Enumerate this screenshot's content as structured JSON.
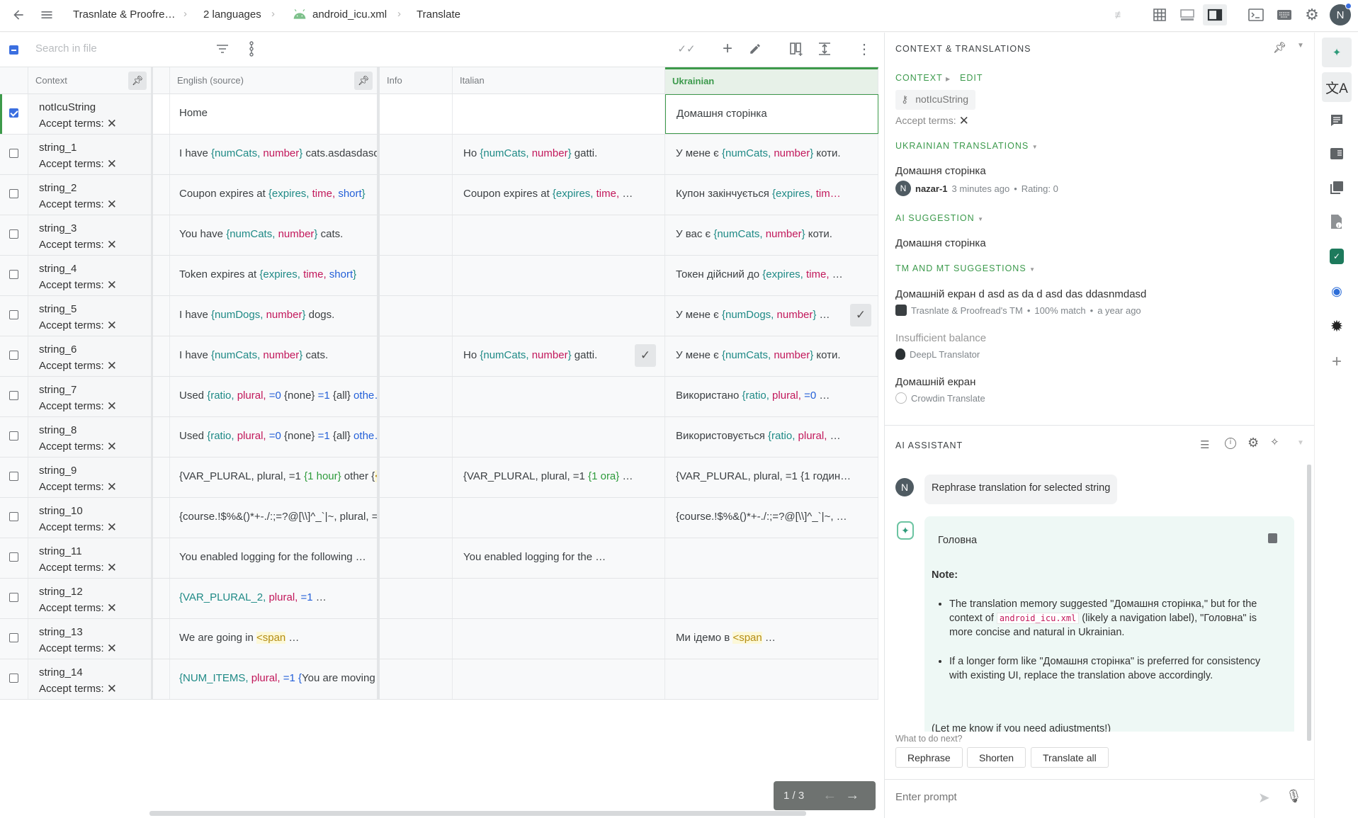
{
  "breadcrumb": {
    "project": "Trasnlate & Proofre…",
    "languages": "2 languages",
    "file": "android_icu.xml",
    "page": "Translate"
  },
  "user_initial": "N",
  "toolbar": {
    "search_placeholder": "Search in file"
  },
  "table": {
    "headers": {
      "context": "Context",
      "english": "English (source)",
      "info": "Info",
      "italian": "Italian",
      "ukrainian": "Ukrainian"
    },
    "accept_terms_label": "Accept terms:",
    "rows": [
      {
        "key": "notIcuString",
        "selected": true,
        "english": [
          {
            "t": "Home"
          }
        ],
        "italian": [],
        "ukrainian": [
          {
            "t": "Домашня сторінка"
          }
        ]
      },
      {
        "key": "string_1",
        "english": [
          {
            "t": "I have "
          },
          {
            "t": "{numCats, ",
            "c": "v"
          },
          {
            "t": "number",
            "c": "f"
          },
          {
            "t": "}",
            "c": "v"
          },
          {
            "t": " cats.asdasdasd"
          }
        ],
        "italian": [
          {
            "t": "Ho "
          },
          {
            "t": "{numCats, ",
            "c": "v"
          },
          {
            "t": "number",
            "c": "f"
          },
          {
            "t": "}",
            "c": "v"
          },
          {
            "t": " gatti."
          }
        ],
        "ukrainian": [
          {
            "t": "У мене є "
          },
          {
            "t": "{numCats, ",
            "c": "v"
          },
          {
            "t": "number",
            "c": "f"
          },
          {
            "t": "}",
            "c": "v"
          },
          {
            "t": " коти."
          }
        ]
      },
      {
        "key": "string_2",
        "english": [
          {
            "t": "Coupon expires at "
          },
          {
            "t": "{expires, ",
            "c": "v"
          },
          {
            "t": "time, ",
            "c": "f"
          },
          {
            "t": "short",
            "c": "o"
          },
          {
            "t": "}",
            "c": "v"
          }
        ],
        "italian": [
          {
            "t": "Coupon expires at "
          },
          {
            "t": "{expires, ",
            "c": "v"
          },
          {
            "t": "time, ",
            "c": "f"
          },
          {
            "t": "…"
          }
        ],
        "ukrainian": [
          {
            "t": "Купон закінчується "
          },
          {
            "t": "{expires, ",
            "c": "v"
          },
          {
            "t": "tim…",
            "c": "f"
          }
        ]
      },
      {
        "key": "string_3",
        "english": [
          {
            "t": "You have "
          },
          {
            "t": "{numCats, ",
            "c": "v"
          },
          {
            "t": "number",
            "c": "f"
          },
          {
            "t": "}",
            "c": "v"
          },
          {
            "t": " cats."
          }
        ],
        "italian": [],
        "ukrainian": [
          {
            "t": "У вас є "
          },
          {
            "t": "{numCats, ",
            "c": "v"
          },
          {
            "t": "number",
            "c": "f"
          },
          {
            "t": "}",
            "c": "v"
          },
          {
            "t": " коти."
          }
        ]
      },
      {
        "key": "string_4",
        "english": [
          {
            "t": "Token expires at "
          },
          {
            "t": "{expires, ",
            "c": "v"
          },
          {
            "t": "time, ",
            "c": "f"
          },
          {
            "t": "short",
            "c": "o"
          },
          {
            "t": "}",
            "c": "v"
          }
        ],
        "italian": [],
        "ukrainian": [
          {
            "t": "Токен дійсний до "
          },
          {
            "t": "{expires, ",
            "c": "v"
          },
          {
            "t": "time, ",
            "c": "f"
          },
          {
            "t": "…"
          }
        ]
      },
      {
        "key": "string_5",
        "english": [
          {
            "t": "I have "
          },
          {
            "t": "{numDogs, ",
            "c": "v"
          },
          {
            "t": "number",
            "c": "f"
          },
          {
            "t": "}",
            "c": "v"
          },
          {
            "t": " dogs."
          }
        ],
        "italian": [],
        "ukrainian": [
          {
            "t": "У мене є "
          },
          {
            "t": "{numDogs, ",
            "c": "v"
          },
          {
            "t": "number",
            "c": "f"
          },
          {
            "t": "}",
            "c": "v"
          },
          {
            "t": " …"
          }
        ],
        "uk_check": true
      },
      {
        "key": "string_6",
        "english": [
          {
            "t": "I have "
          },
          {
            "t": "{numCats, ",
            "c": "v"
          },
          {
            "t": "number",
            "c": "f"
          },
          {
            "t": "}",
            "c": "v"
          },
          {
            "t": " cats."
          }
        ],
        "italian": [
          {
            "t": "Ho "
          },
          {
            "t": "{numCats, ",
            "c": "v"
          },
          {
            "t": "number",
            "c": "f"
          },
          {
            "t": "}",
            "c": "v"
          },
          {
            "t": " gatti."
          }
        ],
        "it_check": true,
        "ukrainian": [
          {
            "t": "У мене є "
          },
          {
            "t": "{numCats, ",
            "c": "v"
          },
          {
            "t": "number",
            "c": "f"
          },
          {
            "t": "}",
            "c": "v"
          },
          {
            "t": " коти."
          }
        ]
      },
      {
        "key": "string_7",
        "english": [
          {
            "t": "Used "
          },
          {
            "t": "{ratio, ",
            "c": "v"
          },
          {
            "t": "plural, ",
            "c": "f"
          },
          {
            "t": "=0 ",
            "c": "o"
          },
          {
            "t": "{none}"
          },
          {
            "t": " =1 ",
            "c": "o"
          },
          {
            "t": "{all}"
          },
          {
            "t": " othe…",
            "c": "o"
          }
        ],
        "italian": [],
        "ukrainian": [
          {
            "t": "Використано "
          },
          {
            "t": "{ratio, ",
            "c": "v"
          },
          {
            "t": "plural, ",
            "c": "f"
          },
          {
            "t": "=0",
            "c": "o"
          },
          {
            "t": " …"
          }
        ]
      },
      {
        "key": "string_8",
        "english": [
          {
            "t": "Used "
          },
          {
            "t": "{ratio, ",
            "c": "v"
          },
          {
            "t": "plural, ",
            "c": "f"
          },
          {
            "t": "=0 ",
            "c": "o"
          },
          {
            "t": "{none}"
          },
          {
            "t": " =1 ",
            "c": "o"
          },
          {
            "t": "{all}"
          },
          {
            "t": " othe…",
            "c": "o"
          }
        ],
        "italian": [],
        "ukrainian": [
          {
            "t": "Використовується "
          },
          {
            "t": "{ratio, ",
            "c": "v"
          },
          {
            "t": "plural, ",
            "c": "f"
          },
          {
            "t": "…"
          }
        ]
      },
      {
        "key": "string_9",
        "english": [
          {
            "t": "{VAR_PLURAL, plural, =1 "
          },
          {
            "t": "{1 hour}",
            "c": "g"
          },
          {
            "t": " other {"
          },
          {
            "t": "<…",
            "c": "h"
          }
        ],
        "italian": [
          {
            "t": "{VAR_PLURAL, plural, =1 "
          },
          {
            "t": "{1 ora}",
            "c": "g"
          },
          {
            "t": " …"
          }
        ],
        "ukrainian": [
          {
            "t": "{VAR_PLURAL, plural, =1 {1 годин…"
          }
        ]
      },
      {
        "key": "string_10",
        "english": [
          {
            "t": "{course.!$%&()*+-./:;=?@[\\\\]^_`|~, plural, =…"
          }
        ],
        "italian": [],
        "ukrainian": [
          {
            "t": "{course.!$%&()*+-./:;=?@[\\\\]^_`|~, …"
          }
        ]
      },
      {
        "key": "string_11",
        "english": [
          {
            "t": "You enabled logging for the following …"
          }
        ],
        "italian": [
          {
            "t": "You enabled logging for the …"
          }
        ],
        "ukrainian": []
      },
      {
        "key": "string_12",
        "english": [
          {
            "t": "{VAR_PLURAL_2, ",
            "c": "v"
          },
          {
            "t": "plural, ",
            "c": "f"
          },
          {
            "t": "=1",
            "c": "o"
          },
          {
            "t": " …"
          }
        ],
        "italian": [],
        "ukrainian": []
      },
      {
        "key": "string_13",
        "english": [
          {
            "t": "We are going in "
          },
          {
            "t": "<span",
            "c": "h"
          },
          {
            "t": " …"
          }
        ],
        "italian": [],
        "ukrainian": [
          {
            "t": "Ми ідемо в "
          },
          {
            "t": "<span",
            "c": "h"
          },
          {
            "t": " …"
          }
        ]
      },
      {
        "key": "string_14",
        "english": [
          {
            "t": "{NUM_ITEMS, ",
            "c": "v"
          },
          {
            "t": "plural, ",
            "c": "f"
          },
          {
            "t": "=1 ",
            "c": "o"
          },
          {
            "t": "{",
            "c": "o"
          },
          {
            "t": "You are moving …"
          }
        ],
        "italian": [],
        "ukrainian": []
      }
    ]
  },
  "pagination": {
    "label": "1 / 3"
  },
  "context_panel": {
    "title": "CONTEXT & TRANSLATIONS",
    "context_label": "CONTEXT",
    "edit_label": "EDIT",
    "key": "notIcuString",
    "accept_terms": "Accept terms:",
    "translations_title": "UKRAINIAN TRANSLATIONS",
    "translation": {
      "text": "Домашня сторінка",
      "user": "nazar-1",
      "time": "3 minutes ago",
      "rating": "Rating: 0"
    },
    "ai_title": "AI SUGGESTION",
    "ai_text": "Домашня сторінка",
    "tm_title": "TM AND MT SUGGESTIONS",
    "suggestions": [
      {
        "text": "Домашній екран d asd as da d asd das ddasnmdasd",
        "source": "Trasnlate & Proofread's TM",
        "match": "100% match",
        "time": "a year ago"
      },
      {
        "text": "Insufficient balance",
        "source": "DeepL Translator",
        "muted": true
      },
      {
        "text": "Домашній екран",
        "source": "Crowdin Translate"
      }
    ]
  },
  "ai_assistant": {
    "title": "AI ASSISTANT",
    "user_message": "Rephrase translation for selected string",
    "reply_translation": "Головна",
    "note_label": "Note:",
    "bullet1_a": "The translation memory suggested \"Домашня сторінка,\" but for the context of ",
    "bullet1_code": "android_icu.xml",
    "bullet1_b": " (likely a navigation label), \"Головна\" is more concise and natural in Ukrainian.",
    "bullet2": "If a longer form like \"Домашня сторінка\" is preferred for consistency with existing UI, replace the translation above accordingly.",
    "footer": "(Let me know if you need adjustments!)",
    "next_label": "What to do next?",
    "actions": [
      "Rephrase",
      "Shorten",
      "Translate all"
    ],
    "prompt_placeholder": "Enter prompt"
  },
  "colors": {
    "accent_green": "#3c9a4c",
    "variable": "#1f8a86",
    "format": "#c2185b",
    "option": "#2460d8",
    "checkbox": "#3b6fe0"
  }
}
